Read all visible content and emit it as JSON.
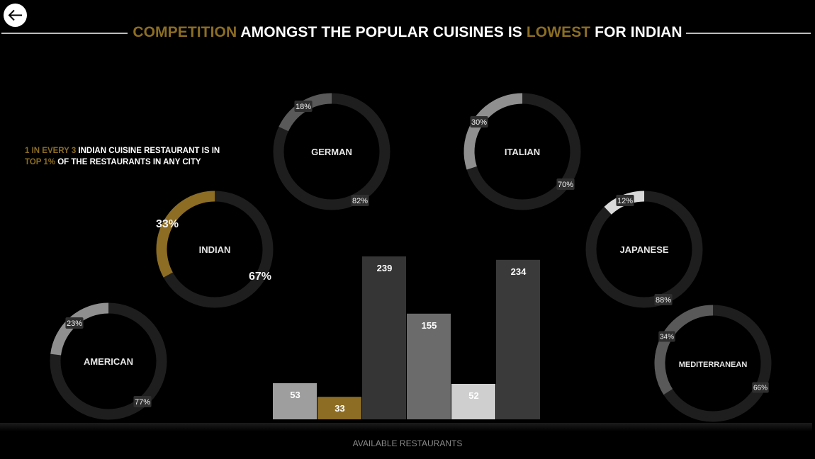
{
  "header": {
    "back_icon": "arrow-left-icon",
    "title_parts": [
      {
        "text": "COMPETITION",
        "highlight": true
      },
      {
        "text": " AMONGST THE POPULAR CUISINES IS ",
        "highlight": false
      },
      {
        "text": "LOWEST",
        "highlight": true
      },
      {
        "text": " FOR INDIAN",
        "highlight": false
      }
    ]
  },
  "note": {
    "line1": [
      {
        "text": "1 IN EVERY 3",
        "highlight": true
      },
      {
        "text": " INDIAN CUISINE RESTAURANT IS IN",
        "highlight": false
      }
    ],
    "line2": [
      {
        "text": "TOP 1%",
        "highlight": true
      },
      {
        "text": " OF THE RESTAURANTS IN ANY CITY",
        "highlight": false
      }
    ]
  },
  "colors": {
    "gold": "#8c6d23",
    "ring_base": "#1e1e1e",
    "ring_gray": "#595959",
    "ring_light": "#8f8f8f",
    "ring_white": "#d9d9d9",
    "label_box": "#2f2f2f"
  },
  "chart_data": [
    {
      "type": "pie",
      "subtype": "donut",
      "donuts": [
        {
          "name": "GERMAN",
          "slices": [
            {
              "label": "18%",
              "value": 18
            },
            {
              "label": "82%",
              "value": 82
            }
          ],
          "accent": "ring_gray"
        },
        {
          "name": "ITALIAN",
          "slices": [
            {
              "label": "30%",
              "value": 30
            },
            {
              "label": "70%",
              "value": 70
            }
          ],
          "accent": "ring_light"
        },
        {
          "name": "INDIAN",
          "slices": [
            {
              "label": "33%",
              "value": 33
            },
            {
              "label": "67%",
              "value": 67
            }
          ],
          "accent": "gold"
        },
        {
          "name": "JAPANESE",
          "slices": [
            {
              "label": "12%",
              "value": 12
            },
            {
              "label": "88%",
              "value": 88
            }
          ],
          "accent": "ring_white"
        },
        {
          "name": "AMERICAN",
          "slices": [
            {
              "label": "23%",
              "value": 23
            },
            {
              "label": "77%",
              "value": 77
            }
          ],
          "accent": "ring_light"
        },
        {
          "name": "MEDITERRANEAN",
          "slices": [
            {
              "label": "34%",
              "value": 34
            },
            {
              "label": "66%",
              "value": 66
            }
          ],
          "accent": "ring_gray"
        }
      ]
    },
    {
      "type": "bar",
      "xlabel": "AVAILABLE RESTAURANTS",
      "ylim": [
        0,
        250
      ],
      "bars": [
        {
          "value": 53,
          "color": "#9e9e9e"
        },
        {
          "value": 33,
          "color": "#8c6d23"
        },
        {
          "value": 239,
          "color": "#353535"
        },
        {
          "value": 155,
          "color": "#6b6b6b"
        },
        {
          "value": 52,
          "color": "#cfcfcf"
        },
        {
          "value": 234,
          "color": "#3a3a3a"
        }
      ]
    }
  ]
}
